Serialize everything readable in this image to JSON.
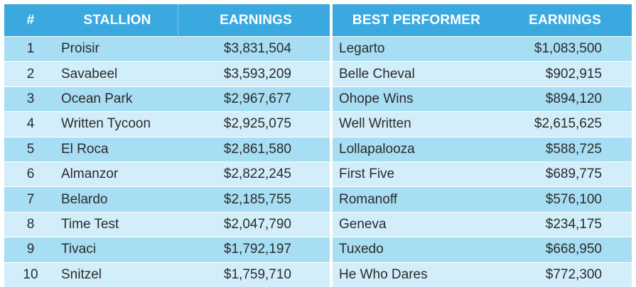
{
  "stallions": {
    "headers": {
      "rank": "#",
      "stallion": "STALLION",
      "earnings": "EARNINGS"
    },
    "rows": [
      {
        "rank": "1",
        "name": "Proisir",
        "earnings": "$3,831,504"
      },
      {
        "rank": "2",
        "name": "Savabeel",
        "earnings": "$3,593,209"
      },
      {
        "rank": "3",
        "name": "Ocean Park",
        "earnings": "$2,967,677"
      },
      {
        "rank": "4",
        "name": "Written Tycoon",
        "earnings": "$2,925,075"
      },
      {
        "rank": "5",
        "name": "El Roca",
        "earnings": "$2,861,580"
      },
      {
        "rank": "6",
        "name": "Almanzor",
        "earnings": "$2,822,245"
      },
      {
        "rank": "7",
        "name": "Belardo",
        "earnings": "$2,185,755"
      },
      {
        "rank": "8",
        "name": "Time Test",
        "earnings": "$2,047,790"
      },
      {
        "rank": "9",
        "name": "Tivaci",
        "earnings": "$1,792,197"
      },
      {
        "rank": "10",
        "name": "Snitzel",
        "earnings": "$1,759,710"
      }
    ]
  },
  "best_performers": {
    "headers": {
      "best_performer": "BEST PERFORMER",
      "earnings": "EARNINGS"
    },
    "rows": [
      {
        "name": "Legarto",
        "earnings": "$1,083,500"
      },
      {
        "name": "Belle Cheval",
        "earnings": "$902,915"
      },
      {
        "name": "Ohope Wins",
        "earnings": "$894,120"
      },
      {
        "name": "Well Written",
        "earnings": "$2,615,625"
      },
      {
        "name": "Lollapalooza",
        "earnings": "$588,725"
      },
      {
        "name": "First Five",
        "earnings": "$689,775"
      },
      {
        "name": "Romanoff",
        "earnings": "$576,100"
      },
      {
        "name": "Geneva",
        "earnings": "$234,175"
      },
      {
        "name": "Tuxedo",
        "earnings": "$668,950"
      },
      {
        "name": "He Who Dares",
        "earnings": "$772,300"
      }
    ]
  },
  "colors": {
    "header_bg": "#3aa9df",
    "row_odd": "#a7def3",
    "row_even": "#d2eefa"
  }
}
